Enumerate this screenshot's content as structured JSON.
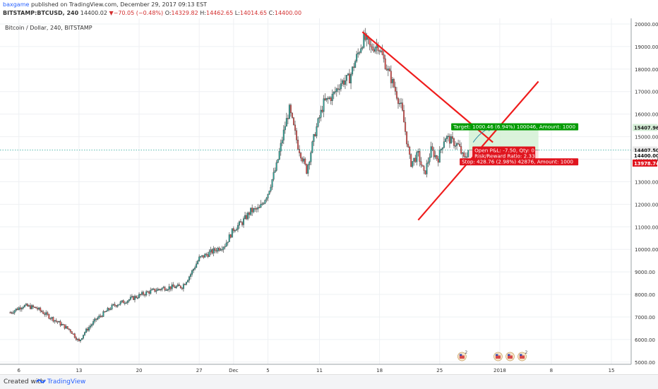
{
  "header": {
    "author": "baxgame",
    "published_text": "published on TradingView.com, December 29, 2017 09:13 EST",
    "symbol": "BITSTAMP:BTCUSD, 240",
    "last": "14400.02",
    "change": "−70.05 (−0.48%)",
    "open": "14329.82",
    "high": "14462.65",
    "low": "14014.65",
    "close": "14400.00",
    "o_label": "O:",
    "h_label": "H:",
    "l_label": "L:",
    "c_label": "C:"
  },
  "chart_data": {
    "type": "candlestick",
    "legend": "Bitcoin / Dollar, 240, BITSTAMP",
    "ylim": [
      4900,
      20250
    ],
    "xlim_days": [
      -1.2,
      47.2
    ],
    "yticks": [
      5000,
      6000,
      7000,
      8000,
      9000,
      10000,
      11000,
      12000,
      13000,
      14000,
      15000,
      16000,
      17000,
      18000,
      19000,
      20000
    ],
    "ytick_labels": [
      "5000.00",
      "6000.00",
      "7000.00",
      "8000.00",
      "9000.00",
      "10000.00",
      "11000.00",
      "12000.00",
      "13000.00",
      "14000.00",
      "15000.00",
      "16000.00",
      "17000.00",
      "18000.00",
      "19000.00",
      "20000.00"
    ],
    "xticks": [
      {
        "day": 1,
        "label": "6"
      },
      {
        "day": 8,
        "label": "13"
      },
      {
        "day": 15,
        "label": "20"
      },
      {
        "day": 22,
        "label": "27"
      },
      {
        "day": 26,
        "label": "Dec"
      },
      {
        "day": 30,
        "label": "5"
      },
      {
        "day": 36,
        "label": "11"
      },
      {
        "day": 43,
        "label": "18"
      },
      {
        "day": 50,
        "label": "25"
      },
      {
        "day": 57,
        "label": "2018"
      },
      {
        "day": 63,
        "label": "8"
      },
      {
        "day": 70,
        "label": "15"
      }
    ],
    "price_path": [
      [
        0,
        7200
      ],
      [
        1.5,
        7500
      ],
      [
        3,
        7400
      ],
      [
        5,
        6900
      ],
      [
        7,
        6400
      ],
      [
        8,
        5900
      ],
      [
        8.6,
        6300
      ],
      [
        10,
        6900
      ],
      [
        12,
        7500
      ],
      [
        14,
        7800
      ],
      [
        16,
        8100
      ],
      [
        18,
        8300
      ],
      [
        20,
        8350
      ],
      [
        21,
        8900
      ],
      [
        22,
        9600
      ],
      [
        23,
        9800
      ],
      [
        24,
        10000
      ],
      [
        25,
        10200
      ],
      [
        26,
        10900
      ],
      [
        27,
        11200
      ],
      [
        28,
        11700
      ],
      [
        29,
        11800
      ],
      [
        30,
        12500
      ],
      [
        31,
        13700
      ],
      [
        32,
        15500
      ],
      [
        32.5,
        16200
      ],
      [
        33.5,
        14600
      ],
      [
        34.5,
        13500
      ],
      [
        35.5,
        15200
      ],
      [
        36.5,
        16500
      ],
      [
        37.5,
        16800
      ],
      [
        38.5,
        17400
      ],
      [
        39.5,
        17600
      ],
      [
        40.3,
        18500
      ],
      [
        41.2,
        19400
      ],
      [
        42,
        18900
      ],
      [
        42.8,
        19100
      ],
      [
        43.8,
        18100
      ],
      [
        44.6,
        17300
      ],
      [
        45.6,
        16200
      ],
      [
        46.6,
        13800
      ],
      [
        47.5,
        14200
      ],
      [
        48.2,
        13300
      ],
      [
        49,
        14400
      ],
      [
        49.8,
        14000
      ],
      [
        50.6,
        15000
      ],
      [
        51.4,
        14800
      ],
      [
        52.2,
        14600
      ],
      [
        52.8,
        14000
      ],
      [
        53.4,
        14400
      ]
    ],
    "current_price": 14400.0,
    "current_price_label": "14400.00",
    "price_line_label": "14407.50",
    "target_price_label": "15407.96",
    "stop_price_label": "13978.74",
    "trend_lines": [
      {
        "name": "upper-trend-line",
        "from": [
          41,
          19650
        ],
        "to": [
          56.2,
          14750
        ]
      },
      {
        "name": "lower-trend-line",
        "from": [
          47.5,
          11300
        ],
        "to": [
          61.5,
          17450
        ]
      }
    ],
    "position": {
      "entry_start_day": 53.4,
      "end_day": 61.5,
      "entry": 14407.5,
      "target": 15407.96,
      "stop": 13978.74,
      "target_label": "Target: 1000.46 (6.94%) 100046, Amount: 1000",
      "open_pl_label": "Open P&L: -7.50, Qty: 0",
      "rr_label": "Risk/Reward Ratio: 2.33",
      "stop_label": "Stop: 428.76 (2.98%) 42876, Amount: 1000"
    },
    "events": [
      {
        "day": 52.6,
        "badge": "2"
      },
      {
        "day": 56.8,
        "badge": ""
      },
      {
        "day": 58.2,
        "badge": ""
      },
      {
        "day": 59.6,
        "badge": "2"
      }
    ]
  },
  "colors": {
    "up": "#26a69a",
    "down": "#ef5350",
    "wick": "#5d5d5d",
    "trend": "#ef1c1c",
    "target_fill": "#d3f1d5",
    "stop_fill": "#fbd3d3",
    "target_badge": "#009b00",
    "stop_badge": "#e0141e",
    "grid": "#eef0f3"
  },
  "footer": {
    "created_with": "Created with",
    "brand": "TradingView"
  }
}
